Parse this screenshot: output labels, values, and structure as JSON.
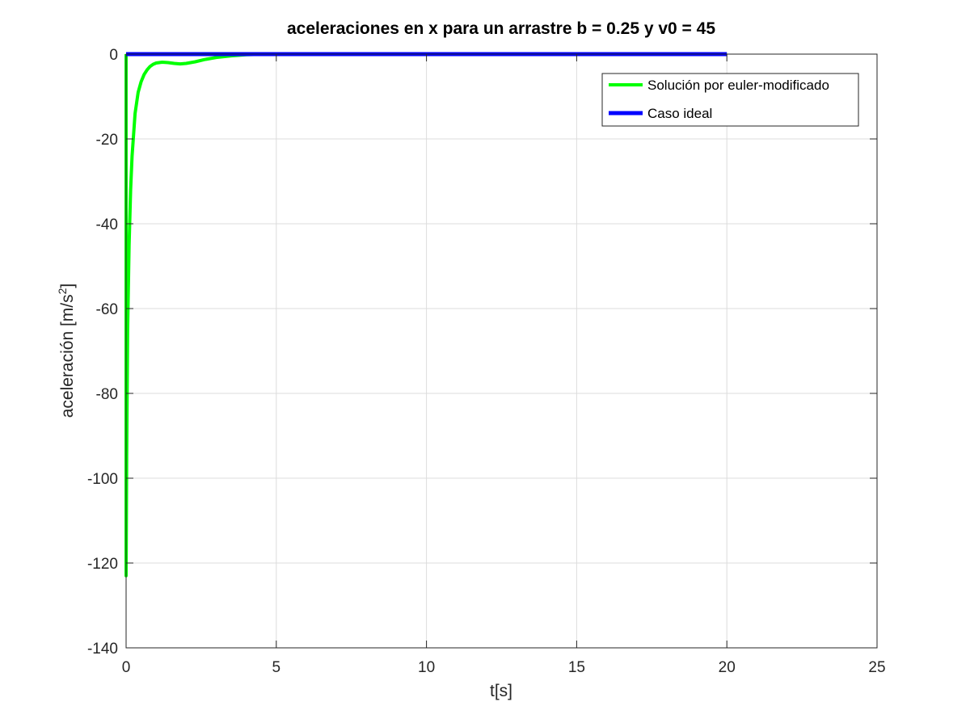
{
  "chart_data": {
    "type": "line",
    "title": "aceleraciones en x para un arrastre b = 0.25 y  v0 = 45",
    "xlabel": "t[s]",
    "ylabel_main": "aceleración [m/s",
    "ylabel_sup": "2",
    "ylabel_tail": "]",
    "xlim": [
      0,
      25
    ],
    "ylim": [
      -140,
      0
    ],
    "xticks": [
      0,
      5,
      10,
      15,
      20,
      25
    ],
    "yticks": [
      0,
      -20,
      -40,
      -60,
      -80,
      -100,
      -120,
      -140
    ],
    "xtick_labels": [
      "0",
      "5",
      "10",
      "15",
      "20",
      "25"
    ],
    "ytick_labels": [
      "0",
      "-20",
      "-40",
      "-60",
      "-80",
      "-100",
      "-120",
      "-140"
    ],
    "grid": true,
    "legend_position": "top-right",
    "series": [
      {
        "name": "Solución por euler-modificado",
        "color": "#00ff00",
        "x": [
          0,
          0,
          0.02,
          0.05,
          0.1,
          0.15,
          0.2,
          0.3,
          0.4,
          0.5,
          0.6,
          0.7,
          0.8,
          0.9,
          1.0,
          1.2,
          1.4,
          1.6,
          1.8,
          2.0,
          2.3,
          2.6,
          3.0,
          3.5,
          4.0,
          4.5,
          5,
          20
        ],
        "y": [
          0,
          -123,
          -95,
          -65,
          -45,
          -32,
          -24,
          -14,
          -9,
          -6.5,
          -4.8,
          -3.7,
          -2.9,
          -2.4,
          -2.1,
          -1.9,
          -2.0,
          -2.2,
          -2.3,
          -2.2,
          -1.8,
          -1.3,
          -0.8,
          -0.4,
          -0.15,
          -0.05,
          0,
          0
        ]
      },
      {
        "name": "Caso ideal",
        "color": "#0000ff",
        "x": [
          0,
          20
        ],
        "y": [
          0,
          0
        ]
      }
    ]
  }
}
